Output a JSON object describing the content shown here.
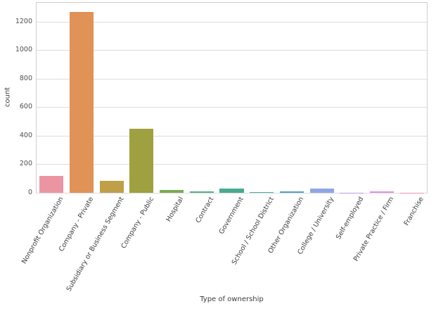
{
  "chart_data": {
    "type": "bar",
    "title": "",
    "xlabel": "Type of ownership",
    "ylabel": "count",
    "categories": [
      "Nonprofit Organization",
      "Company - Private",
      "Subsidiary or Business Segment",
      "Company - Public",
      "Hospital",
      "Contract",
      "Government",
      "School / School District",
      "Other Organization",
      "College / University",
      "Self-employed",
      "Private Practice / Firm",
      "Franchise"
    ],
    "values": [
      120,
      1270,
      86,
      450,
      18,
      8,
      30,
      7,
      10,
      30,
      2,
      8,
      1
    ],
    "bar_colors": [
      "#ec95a2",
      "#e09257",
      "#c09f49",
      "#9fa03f",
      "#7aab55",
      "#55b184",
      "#46ab90",
      "#42b1ad",
      "#4fa3c6",
      "#8ea7e4",
      "#bd9be6",
      "#e392de",
      "#ee92ba"
    ],
    "yticks": [
      0,
      200,
      400,
      600,
      800,
      1000,
      1200
    ],
    "ylim": [
      0,
      1333
    ],
    "grid": true,
    "grid_color": "#dcdcdc",
    "axis_edge_color": "#cfcfcf",
    "tick_label_color": "#4d4d4d",
    "axis_label_color": "#3d3d3d",
    "background": "#ffffff",
    "x_tick_rotation_deg": 60,
    "legend": "none"
  }
}
